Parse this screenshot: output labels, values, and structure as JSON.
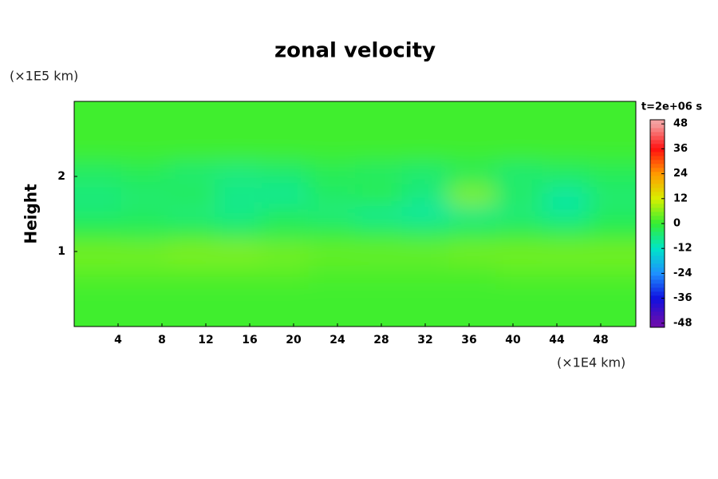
{
  "chart_data": {
    "type": "heatmap",
    "title": "zonal velocity",
    "y_label": "Height",
    "y_unit": "(×1E5 km)",
    "x_unit": "(×1E4 km)",
    "colorbar_title": "t=2e+06 s",
    "x": [
      2.13,
      6.4,
      10.67,
      14.93,
      19.2,
      23.47,
      27.73,
      32,
      36.27,
      40.53,
      44.8,
      49.07
    ],
    "y": [
      0.15,
      0.45,
      0.75,
      1.0,
      1.25,
      1.5,
      1.75,
      2.0,
      2.4,
      2.8
    ],
    "z": [
      [
        1,
        1,
        1,
        1,
        1,
        1,
        1,
        1,
        1,
        1,
        1,
        1
      ],
      [
        1,
        1,
        1,
        1,
        1,
        1,
        1,
        1,
        1,
        1,
        1,
        1
      ],
      [
        3,
        3,
        3,
        3,
        3,
        2,
        2,
        2,
        2,
        3,
        3,
        3
      ],
      [
        5,
        5,
        6,
        6,
        5,
        4,
        4,
        4,
        5,
        5,
        5,
        5
      ],
      [
        -1,
        -2,
        -1,
        -3,
        -2,
        -1,
        -2,
        -3,
        -2,
        -1,
        -2,
        -1
      ],
      [
        -5,
        -4,
        -6,
        -7,
        -4,
        -6,
        -8,
        -9,
        -7,
        -6,
        -8,
        -4
      ],
      [
        -6,
        -5,
        -3,
        -7,
        -8,
        -4,
        -2,
        -6,
        6,
        -4,
        -9,
        -5
      ],
      [
        -4,
        -3,
        -5,
        -6,
        -5,
        -3,
        -4,
        -5,
        -3,
        -5,
        -4,
        -3
      ],
      [
        1,
        1,
        1,
        1,
        1,
        1,
        1,
        1,
        1,
        1,
        1,
        1
      ],
      [
        1,
        1,
        1,
        1,
        1,
        1,
        1,
        1,
        1,
        1,
        1,
        1
      ]
    ],
    "xlim": [
      0,
      51.2
    ],
    "ylim": [
      0,
      3
    ],
    "xticks": [
      4,
      8,
      12,
      16,
      20,
      24,
      28,
      32,
      36,
      40,
      44,
      48
    ],
    "yticks": [
      1,
      2
    ],
    "clim": [
      -50,
      50
    ],
    "cticks": [
      -48,
      -36,
      -24,
      -12,
      0,
      12,
      24,
      36,
      48
    ],
    "colormap": [
      "#6a0dad",
      "#1010e0",
      "#1e90ff",
      "#00e5c8",
      "#33ee33",
      "#d8f000",
      "#ff9900",
      "#ff1010",
      "#f4a0a0"
    ]
  }
}
